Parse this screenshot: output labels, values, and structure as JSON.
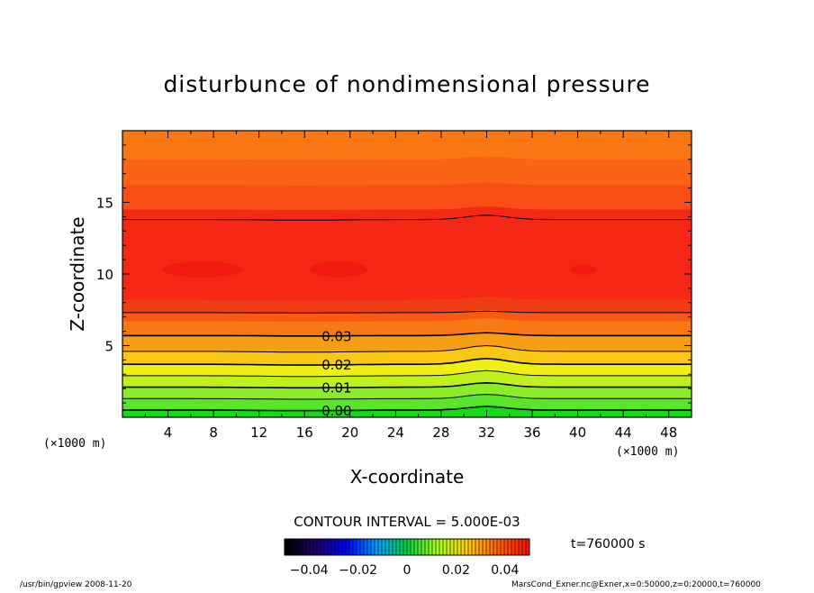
{
  "chart_data": {
    "type": "contour",
    "title": "disturbunce of nondimensional pressure",
    "xlabel": "X-coordinate",
    "ylabel": "Z-coordinate",
    "x_unit_left": "(×1000 m)",
    "x_unit_right": "(×1000 m)",
    "xlim": [
      0,
      50
    ],
    "ylim": [
      0,
      20
    ],
    "x_ticks": [
      "4",
      "8",
      "12",
      "16",
      "20",
      "24",
      "28",
      "32",
      "36",
      "40",
      "44",
      "48"
    ],
    "x_tick_values": [
      4,
      8,
      12,
      16,
      20,
      24,
      28,
      32,
      36,
      40,
      44,
      48
    ],
    "y_ticks": [
      "5",
      "10",
      "15"
    ],
    "y_tick_values": [
      5,
      10,
      15
    ],
    "contour_labels": [
      {
        "text": "0.03",
        "x": 17.5,
        "z": 5.7
      },
      {
        "text": "0.02",
        "x": 17.5,
        "z": 3.7
      },
      {
        "text": "0.01",
        "x": 17.5,
        "z": 2.1
      },
      {
        "text": "0.00",
        "x": 17.5,
        "z": 0.5
      }
    ],
    "contour_interval_text": "CONTOUR INTERVAL = 5.000E-03",
    "colorbar_labels": [
      "−0.04",
      "−0.02",
      "0",
      "0.02",
      "0.04"
    ],
    "colorbar_range": [
      -0.05,
      0.05
    ],
    "time_label": "t=760000 s",
    "contour_levels": [
      {
        "value": 0.0,
        "z": 0.5,
        "bump": 0.25
      },
      {
        "value": 0.005,
        "z": 1.3,
        "bump": 0.3
      },
      {
        "value": 0.01,
        "z": 2.1,
        "bump": 0.3
      },
      {
        "value": 0.015,
        "z": 2.9,
        "bump": 0.35
      },
      {
        "value": 0.02,
        "z": 3.7,
        "bump": 0.4
      },
      {
        "value": 0.025,
        "z": 4.6,
        "bump": 0.4
      },
      {
        "value": 0.03,
        "z": 5.7,
        "bump": 0.2
      },
      {
        "value": 0.035,
        "z": 7.3,
        "bump": 0.1
      },
      {
        "value": 0.035,
        "z": 13.8,
        "bump": 0.3
      }
    ]
  },
  "footer": {
    "left": "/usr/bin/gpview   2008-11-20",
    "right": "MarsCond_Exner.nc@Exner,x=0:50000,z=0:20000,t=760000"
  },
  "colors": {
    "bands": [
      "#14dc14",
      "#32e01e",
      "#5ae628",
      "#8cec28",
      "#c0f01e",
      "#eef014",
      "#f8c814",
      "#f89e14",
      "#f87814",
      "#f85a14",
      "#f03c14",
      "#f42814",
      "#f85014",
      "#fa6414",
      "#fa7814"
    ],
    "peak": "#f01a12"
  }
}
